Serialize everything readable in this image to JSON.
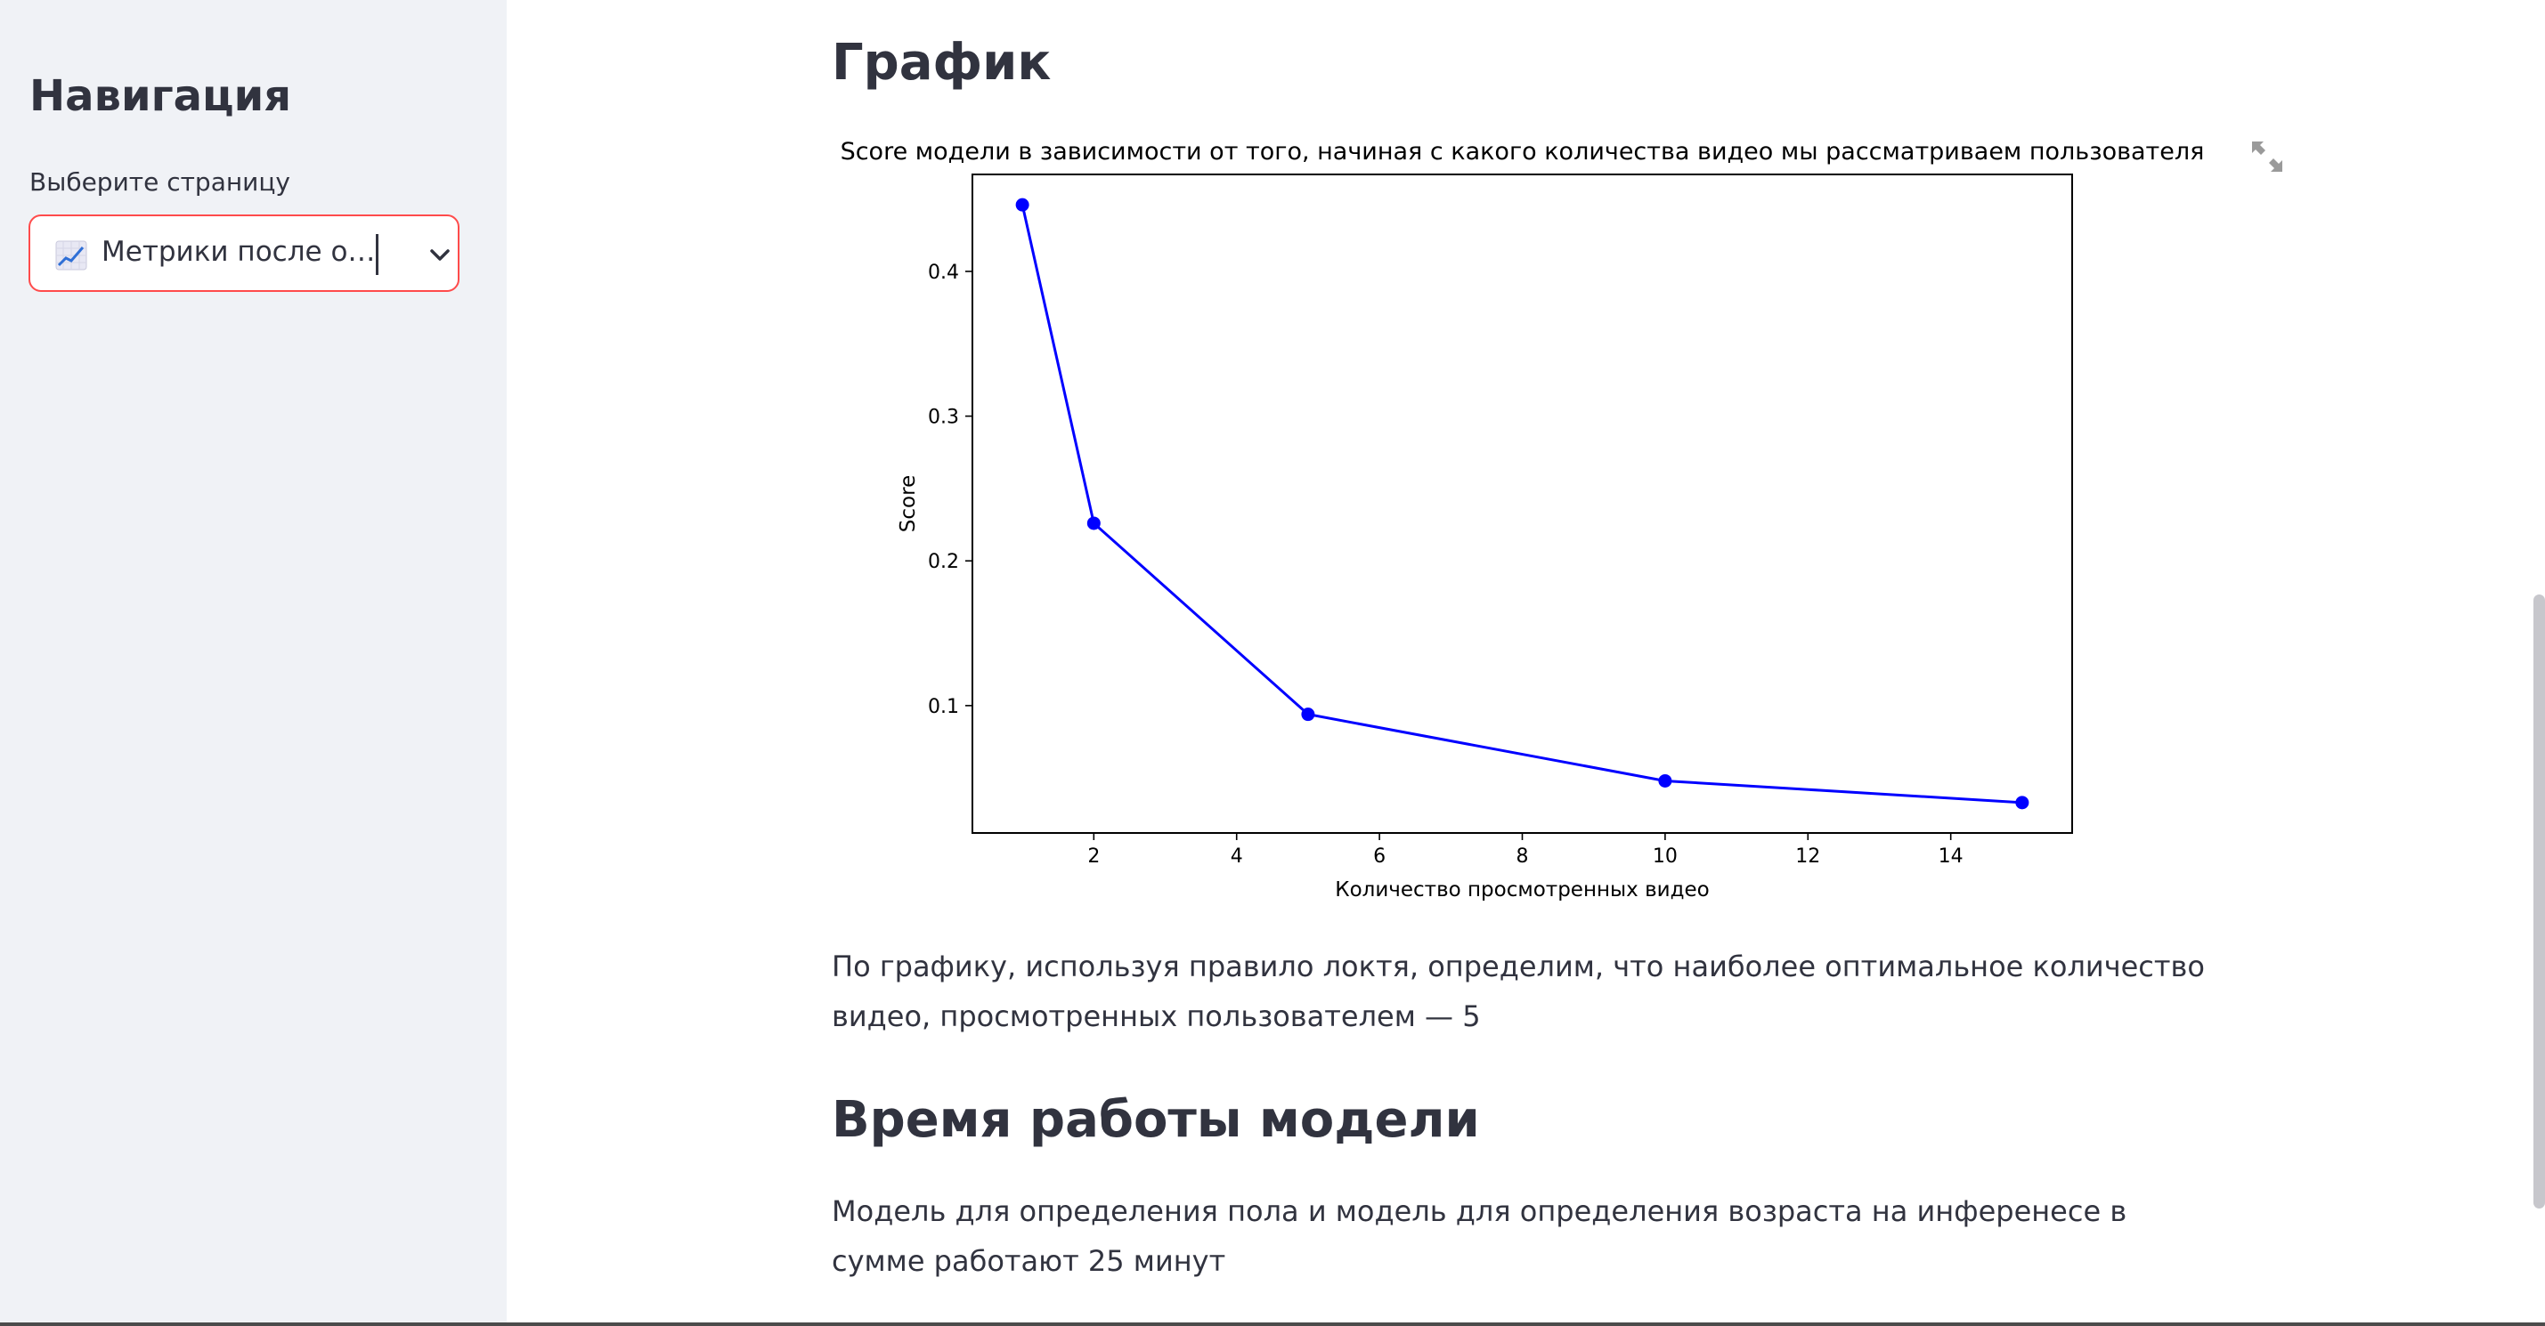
{
  "sidebar": {
    "title": "Навигация",
    "select_label": "Выберите страницу",
    "select_value": "Метрики после о…",
    "select_icon": "chart-upwards-emoji",
    "chevron_icon": "chevron-down-icon"
  },
  "main": {
    "graph_heading": "График",
    "graph_text": "По графику, используя правило локтя, определим, что наиболее оптимальное количество видео, просмотренных пользователем — 5",
    "time_heading": "Время работы модели",
    "time_text": "Модель для определения пола и модель для определения возраста на инференесе в сумме работают 25 минут",
    "expand_icon": "fullscreen-expand-icon"
  },
  "chart_data": {
    "type": "line",
    "title": "Score модели в зависимости от того, начиная с какого количества видео мы рассматриваем пользователя",
    "xlabel": "Количество просмотренных видео",
    "ylabel": "Score",
    "x": [
      1,
      2,
      5,
      10,
      15
    ],
    "y": [
      0.446,
      0.226,
      0.094,
      0.048,
      0.033
    ],
    "xlim": [
      0.3,
      15.7
    ],
    "ylim": [
      0.012,
      0.467
    ],
    "xticks": [
      2,
      4,
      6,
      8,
      10,
      12,
      14
    ],
    "yticks": [
      0.1,
      0.2,
      0.3,
      0.4
    ],
    "grid": false,
    "series_color": "#0000ff",
    "marker": "circle"
  },
  "colors": {
    "sidebar_bg": "#f0f2f6",
    "accent": "#ff4b4b",
    "text": "#31333f"
  }
}
